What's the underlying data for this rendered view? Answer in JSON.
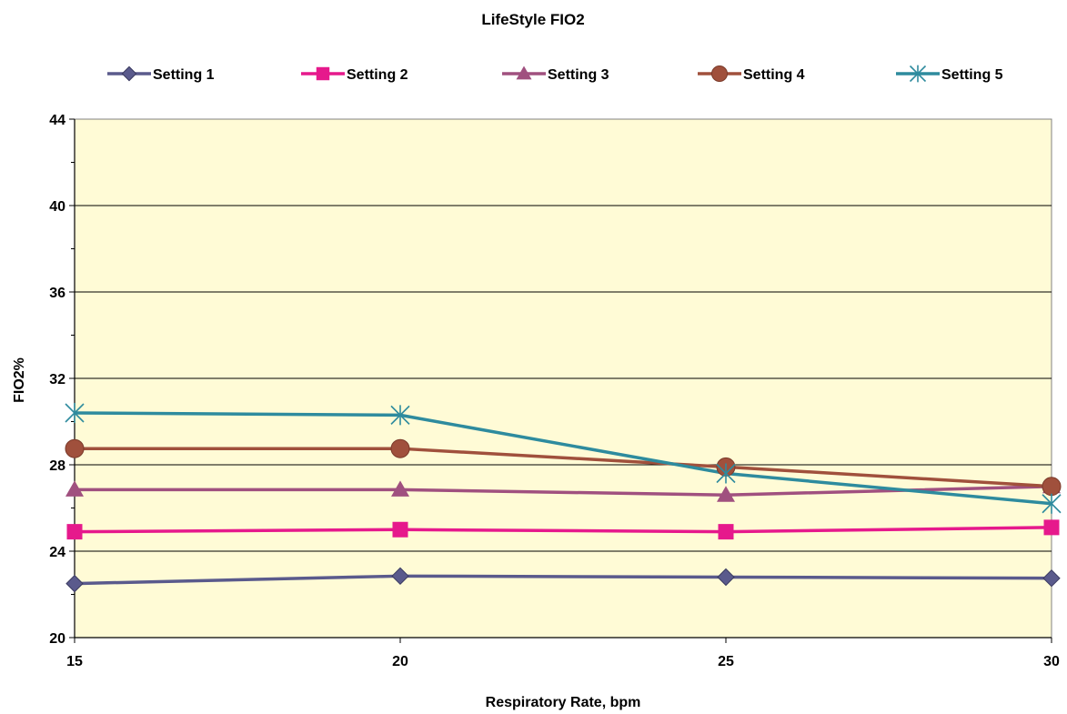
{
  "chart_data": {
    "type": "line",
    "title": "LifeStyle FIO2",
    "xlabel": "Respiratory Rate, bpm",
    "ylabel": "FIO2%",
    "x": [
      15,
      20,
      25,
      30
    ],
    "xlim": [
      15,
      30
    ],
    "ylim": [
      20,
      44
    ],
    "yticks": [
      20,
      24,
      28,
      32,
      36,
      40,
      44
    ],
    "xticks": [
      15,
      20,
      25,
      30
    ],
    "grid": "horizontal",
    "legend_position": "top",
    "plot_background": "#FFFBD6",
    "series": [
      {
        "name": "Setting 1",
        "values": [
          22.5,
          22.85,
          22.8,
          22.75
        ],
        "color": "#5A5A8C",
        "marker": "diamond"
      },
      {
        "name": "Setting 2",
        "values": [
          24.9,
          25.0,
          24.9,
          25.1
        ],
        "color": "#E6198C",
        "marker": "square"
      },
      {
        "name": "Setting 3",
        "values": [
          26.85,
          26.85,
          26.6,
          27.0
        ],
        "color": "#A0507F",
        "marker": "triangle"
      },
      {
        "name": "Setting 4",
        "values": [
          28.75,
          28.75,
          27.9,
          27.0
        ],
        "color": "#A0503C",
        "marker": "circle"
      },
      {
        "name": "Setting 5",
        "values": [
          30.4,
          30.3,
          27.6,
          26.2
        ],
        "color": "#2E8B9E",
        "marker": "asterisk"
      }
    ]
  }
}
